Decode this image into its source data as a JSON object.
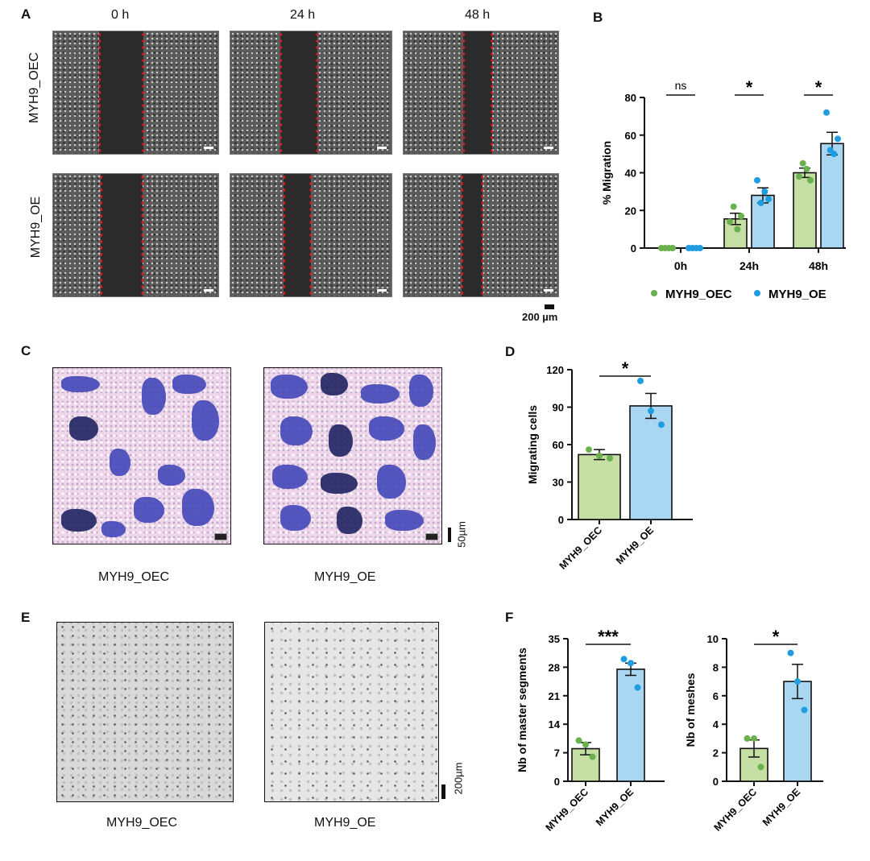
{
  "panels": {
    "A": {
      "letter": "A",
      "time_labels": [
        "0 h",
        "24 h",
        "48 h"
      ],
      "row_labels": [
        "MYH9_OEC",
        "MYH9_OE"
      ],
      "scale_bar": "200 µm"
    },
    "C": {
      "letter": "C",
      "labels": [
        "MYH9_OEC",
        "MYH9_OE"
      ],
      "scale_bar": "50µm",
      "inner_scale": "50 µm"
    },
    "E": {
      "letter": "E",
      "labels": [
        "MYH9_OEC",
        "MYH9_OE"
      ],
      "scale_bar": "200µm"
    }
  },
  "colors": {
    "oec": "#c5dfa5",
    "oe": "#a9d7f2",
    "oec_dot": "#6ab04c",
    "oe_dot": "#1f9de0",
    "gap_edge": "#e01a1a",
    "stain": "#4347b8"
  },
  "chart_data": [
    {
      "panel": "B",
      "type": "bar",
      "categories": [
        "0h",
        "24h",
        "48h"
      ],
      "ylabel": "% Migration",
      "ylim": [
        0,
        80
      ],
      "yticks": [
        0,
        20,
        40,
        60,
        80
      ],
      "series": [
        {
          "name": "MYH9_OEC",
          "values": [
            0,
            15.5,
            40
          ],
          "sem": [
            0,
            3,
            2.5
          ],
          "points": [
            [
              0,
              0,
              0,
              0
            ],
            [
              14,
              22,
              10,
              17
            ],
            [
              38,
              45,
              42,
              36
            ]
          ]
        },
        {
          "name": "MYH9_OE",
          "values": [
            0,
            28,
            55.5
          ],
          "sem": [
            0,
            4,
            6
          ],
          "points": [
            [
              0,
              0,
              0,
              0
            ],
            [
              36,
              24,
              30,
              26
            ],
            [
              72,
              52,
              50,
              58
            ]
          ]
        }
      ],
      "significance": [
        "ns",
        "*",
        "*"
      ],
      "legend": "bottom"
    },
    {
      "panel": "D",
      "type": "bar",
      "categories": [
        "MYH9_OEC",
        "MYH9_OE"
      ],
      "ylabel": "Migrating cells",
      "ylim": [
        0,
        120
      ],
      "yticks": [
        0,
        30,
        60,
        90,
        120
      ],
      "values": [
        52,
        91
      ],
      "sem": [
        4,
        10
      ],
      "points": [
        [
          56,
          51,
          49
        ],
        [
          111,
          87,
          76
        ]
      ],
      "significance": "*"
    },
    {
      "panel": "F",
      "type": "bar",
      "categories": [
        "MYH9_OEC",
        "MYH9_OE"
      ],
      "ylabel": "Nb of master segments",
      "ylim": [
        0,
        35
      ],
      "yticks": [
        0,
        7,
        14,
        21,
        28,
        35
      ],
      "values": [
        8,
        27.5
      ],
      "sem": [
        1.5,
        1.5
      ],
      "points": [
        [
          10,
          9,
          6
        ],
        [
          30,
          29,
          23
        ]
      ],
      "significance": "***"
    },
    {
      "panel": "F",
      "type": "bar",
      "categories": [
        "MYH9_OEC",
        "MYH9_OE"
      ],
      "ylabel": "Nb of meshes",
      "ylim": [
        0,
        10
      ],
      "yticks": [
        0,
        2,
        4,
        6,
        8,
        10
      ],
      "values": [
        2.3,
        7
      ],
      "sem": [
        0.6,
        1.2
      ],
      "points": [
        [
          3,
          3,
          1
        ],
        [
          9,
          7,
          5
        ]
      ],
      "significance": "*"
    }
  ],
  "panel_letters": {
    "B": "B",
    "D": "D",
    "F": "F"
  }
}
